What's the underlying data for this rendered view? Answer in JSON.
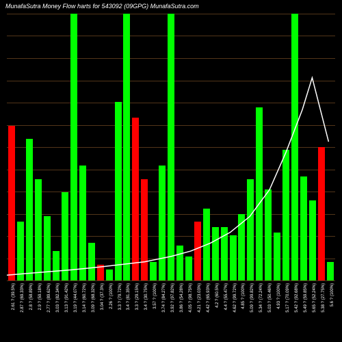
{
  "title": "MunafaSutra   Money Flow   harts for 543092                             (09GPG) MunafaSutra.com",
  "background_color": "#000000",
  "grid_color": "rgba(205,133,63,0.4)",
  "line_color": "#ffffff",
  "line_width": 1.5,
  "colors": {
    "up": "#00ff00",
    "down": "#ff0000"
  },
  "grid_lines": 12,
  "plot_height_pct": 100,
  "bars": [
    {
      "h": 58,
      "c": "down",
      "label": "2.61 ? (39.5%)"
    },
    {
      "h": 22,
      "c": "up",
      "label": "2.87 ? (69.33%)"
    },
    {
      "h": 53,
      "c": "up",
      "label": "2.8 ? (58.89%)"
    },
    {
      "h": 38,
      "c": "up",
      "label": "2.9 ? (59.18%)"
    },
    {
      "h": 24,
      "c": "up",
      "label": "2.77 ? (89.62%)"
    },
    {
      "h": 11,
      "c": "up",
      "label": "3.03 ? (82.34%)"
    },
    {
      "h": 33,
      "c": "up",
      "label": "3.13 ? (91.42%)"
    },
    {
      "h": 100,
      "c": "up",
      "label": "3.19 ? (44.07%)"
    },
    {
      "h": 43,
      "c": "up",
      "label": "3.14 ? (60.72%)"
    },
    {
      "h": 14,
      "c": "up",
      "label": "3.09 ? (68.32%)"
    },
    {
      "h": 6,
      "c": "down",
      "label": "3.04 ? (37.3%)"
    },
    {
      "h": 4,
      "c": "up",
      "label": "2.26 ? (100%)"
    },
    {
      "h": 67,
      "c": "up",
      "label": "3.3 ? (79.72%)"
    },
    {
      "h": 100,
      "c": "up",
      "label": "3.4 ? (81.35%)"
    },
    {
      "h": 61,
      "c": "down",
      "label": "3.3 ? (29.15%)"
    },
    {
      "h": 38,
      "c": "down",
      "label": "3.4 ? (30.75%)"
    },
    {
      "h": 7,
      "c": "up",
      "label": "3.57 ? (100%)"
    },
    {
      "h": 43,
      "c": "up",
      "label": "3.74 ? (84.27%)"
    },
    {
      "h": 100,
      "c": "up",
      "label": "3.92 ? (97.82%)"
    },
    {
      "h": 13,
      "c": "up",
      "label": "3.86 ? (54.28%)"
    },
    {
      "h": 9,
      "c": "up",
      "label": "4.05 ? (98.75%)"
    },
    {
      "h": 22,
      "c": "down",
      "label": "4.21 ? (23.03%)"
    },
    {
      "h": 27,
      "c": "up",
      "label": "4.42 ? (65.93%)"
    },
    {
      "h": 20,
      "c": "up",
      "label": "4.2 ? (60.5%)"
    },
    {
      "h": 20,
      "c": "up",
      "label": "4.4 ? (55.47%)"
    },
    {
      "h": 17,
      "c": "up",
      "label": "4.62 ? (99.72%)"
    },
    {
      "h": 25,
      "c": "up",
      "label": "4.85 ? (100%)"
    },
    {
      "h": 38,
      "c": "up",
      "label": "5.09 ? (99.82%)"
    },
    {
      "h": 65,
      "c": "up",
      "label": "5.34 ? (72.24%)"
    },
    {
      "h": 34,
      "c": "up",
      "label": "5.03 ? (50.46%)"
    },
    {
      "h": 18,
      "c": "up",
      "label": "4.93 ? (100%)"
    },
    {
      "h": 49,
      "c": "up",
      "label": "5.17 ? (70.09%)"
    },
    {
      "h": 100,
      "c": "up",
      "label": "5.42 ? (92.68%)"
    },
    {
      "h": 39,
      "c": "up",
      "label": "5.49 ? (59.85%)"
    },
    {
      "h": 30,
      "c": "up",
      "label": "5.65 ? (52.24%)"
    },
    {
      "h": 50,
      "c": "down",
      "label": "5.38 ? (27.75%)"
    },
    {
      "h": 7,
      "c": "up",
      "label": "5.6 ? (100%)"
    }
  ],
  "line_points": [
    {
      "x": 0.0,
      "y": 0.98
    },
    {
      "x": 0.1,
      "y": 0.97
    },
    {
      "x": 0.2,
      "y": 0.96
    },
    {
      "x": 0.28,
      "y": 0.95
    },
    {
      "x": 0.35,
      "y": 0.94
    },
    {
      "x": 0.42,
      "y": 0.93
    },
    {
      "x": 0.5,
      "y": 0.91
    },
    {
      "x": 0.56,
      "y": 0.89
    },
    {
      "x": 0.62,
      "y": 0.86
    },
    {
      "x": 0.68,
      "y": 0.82
    },
    {
      "x": 0.74,
      "y": 0.76
    },
    {
      "x": 0.8,
      "y": 0.66
    },
    {
      "x": 0.85,
      "y": 0.52
    },
    {
      "x": 0.9,
      "y": 0.36
    },
    {
      "x": 0.93,
      "y": 0.24
    },
    {
      "x": 0.955,
      "y": 0.36
    },
    {
      "x": 0.98,
      "y": 0.48
    }
  ]
}
